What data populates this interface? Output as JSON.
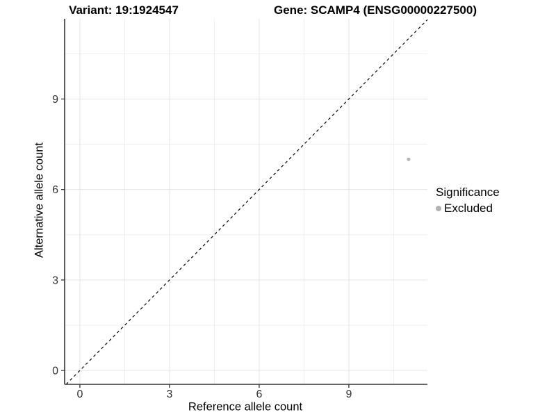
{
  "chart_data": {
    "type": "scatter",
    "titles": [
      "Variant: 19:1924547",
      "Gene: SCAMP4 (ENSG00000227500)"
    ],
    "xlabel": "Reference allele count",
    "ylabel": "Alternative allele count",
    "xlim": [
      -0.51,
      11.63
    ],
    "ylim": [
      -0.46,
      11.66
    ],
    "x_ticks": [
      0,
      3,
      6,
      9
    ],
    "y_ticks": [
      0,
      3,
      6,
      9
    ],
    "x_minor_ticks": [
      1.5,
      4.5,
      7.5,
      10.5
    ],
    "y_minor_ticks": [
      1.5,
      4.5,
      7.5,
      10.5
    ],
    "grid": "major+minor",
    "reference_line": {
      "kind": "identity y=x",
      "style": "dashed",
      "color": "#000000"
    },
    "points": [
      {
        "x": 11,
        "y": 7,
        "series": "Excluded"
      }
    ],
    "legend": {
      "title": "Significance",
      "position": "right",
      "items": [
        {
          "label": "Excluded",
          "color": "#b3b3b3"
        }
      ]
    },
    "style": {
      "background": "#ffffff",
      "grid_major_color": "#e3e3e3",
      "grid_minor_color": "#efefef",
      "axis_color": "#333333",
      "tick_label_color": "#333333",
      "point_radius": 2.5
    }
  }
}
